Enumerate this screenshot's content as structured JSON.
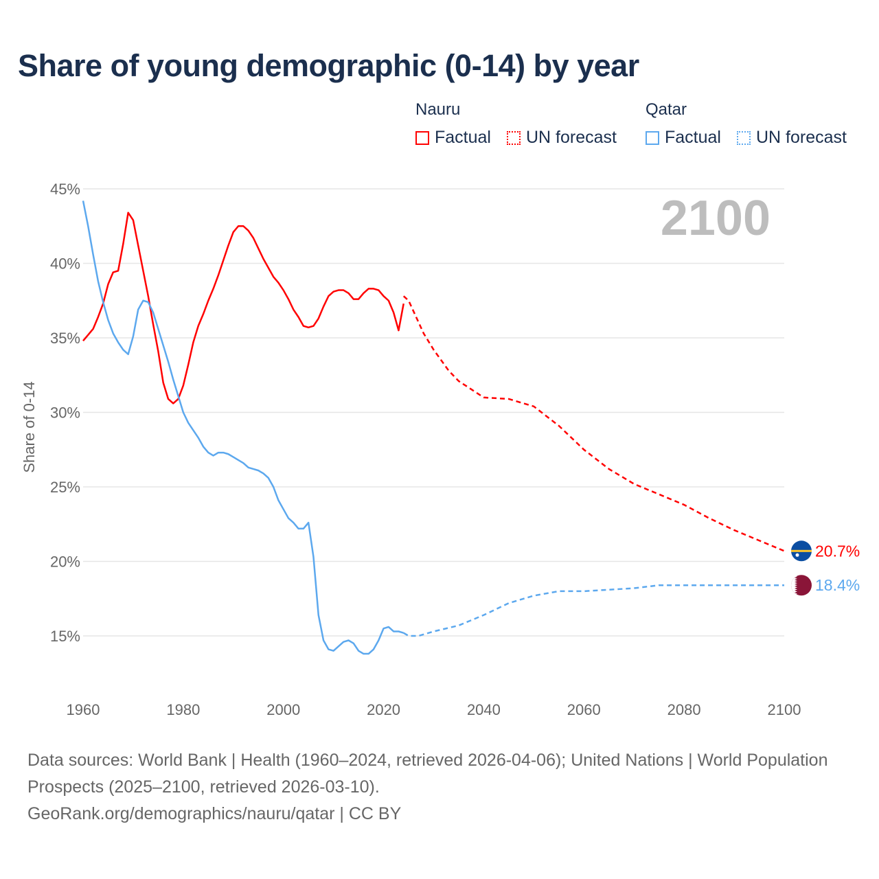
{
  "title": "Share of young demographic (0-14) by year",
  "legend": {
    "groups": [
      {
        "country": "Nauru",
        "factual": "Factual",
        "forecast": "UN forecast",
        "color": "#ff0000"
      },
      {
        "country": "Qatar",
        "factual": "Factual",
        "forecast": "UN forecast",
        "color": "#5ca8ee"
      }
    ]
  },
  "year_label": "2100",
  "footer": {
    "sources": "Data sources: World Bank | Health (1960–2024, retrieved 2026-04-06); United Nations | World Population Prospects (2025–2100, retrieved 2026-03-10).",
    "link": "GeoRank.org/demographics/nauru/qatar | CC BY"
  },
  "chart_data": {
    "type": "line",
    "title": "Share of young demographic (0-14) by year",
    "xlabel": "",
    "ylabel": "Share of 0-14",
    "xlim": [
      1960,
      2100
    ],
    "ylim": [
      12,
      45
    ],
    "grid": true,
    "x_ticks": [
      "1960",
      "1980",
      "2000",
      "2020",
      "2040",
      "2060",
      "2080",
      "2100"
    ],
    "x_tick_values": [
      1960,
      1980,
      2000,
      2020,
      2040,
      2060,
      2080,
      2100
    ],
    "y_ticks": [
      "15%",
      "20%",
      "25%",
      "30%",
      "35%",
      "40%",
      "45%"
    ],
    "y_tick_values": [
      15,
      20,
      25,
      30,
      35,
      40,
      45
    ],
    "series": [
      {
        "name": "Nauru",
        "color": "#ff0000",
        "end_label": "20.7%",
        "factual": {
          "start": 1960,
          "values": [
            34.8,
            35.2,
            35.6,
            36.4,
            37.3,
            38.6,
            39.4,
            39.5,
            41.3,
            43.4,
            42.9,
            41.2,
            39.5,
            37.8,
            35.9,
            34.1,
            32.0,
            30.9,
            30.6,
            30.9,
            31.8,
            33.2,
            34.7,
            35.8,
            36.6,
            37.5,
            38.3,
            39.2,
            40.2,
            41.2,
            42.1,
            42.5,
            42.5,
            42.2,
            41.7,
            41.0,
            40.3,
            39.7,
            39.1,
            38.7,
            38.2,
            37.6,
            36.9,
            36.4,
            35.8,
            35.7,
            35.8,
            36.3,
            37.1,
            37.8,
            38.1,
            38.2,
            38.2,
            38.0,
            37.6,
            37.6,
            38.0,
            38.3,
            38.3,
            38.2,
            37.8,
            37.5,
            36.7,
            35.5,
            37.3
          ]
        },
        "forecast": {
          "x": [
            2024,
            2025,
            2028,
            2030,
            2033,
            2035,
            2040,
            2045,
            2050,
            2055,
            2060,
            2065,
            2070,
            2075,
            2080,
            2085,
            2090,
            2095,
            2100
          ],
          "values": [
            37.8,
            37.5,
            35.3,
            34.2,
            32.8,
            32.1,
            31.0,
            30.9,
            30.4,
            29.1,
            27.5,
            26.2,
            25.2,
            24.5,
            23.8,
            22.9,
            22.1,
            21.4,
            20.7
          ]
        }
      },
      {
        "name": "Qatar",
        "color": "#5ca8ee",
        "end_label": "18.4%",
        "factual": {
          "start": 1960,
          "values": [
            44.2,
            42.5,
            40.6,
            38.8,
            37.4,
            36.2,
            35.3,
            34.7,
            34.2,
            33.9,
            35.1,
            36.9,
            37.5,
            37.4,
            36.7,
            35.6,
            34.5,
            33.4,
            32.2,
            31.1,
            30.0,
            29.3,
            28.8,
            28.3,
            27.7,
            27.3,
            27.1,
            27.3,
            27.3,
            27.2,
            27.0,
            26.8,
            26.6,
            26.3,
            26.2,
            26.1,
            25.9,
            25.6,
            25.0,
            24.1,
            23.5,
            22.9,
            22.6,
            22.2,
            22.2,
            22.6,
            20.3,
            16.4,
            14.7,
            14.1,
            14.0,
            14.3,
            14.6,
            14.7,
            14.5,
            14.0,
            13.8,
            13.8,
            14.1,
            14.7,
            15.5,
            15.6,
            15.3,
            15.3,
            15.2
          ]
        },
        "forecast": {
          "x": [
            2024,
            2025,
            2027,
            2030,
            2035,
            2040,
            2045,
            2050,
            2055,
            2060,
            2065,
            2070,
            2075,
            2080,
            2085,
            2090,
            2095,
            2100
          ],
          "values": [
            15.2,
            15.0,
            15.0,
            15.3,
            15.7,
            16.4,
            17.2,
            17.7,
            18.0,
            18.0,
            18.1,
            18.2,
            18.4,
            18.4,
            18.4,
            18.4,
            18.4,
            18.4
          ]
        }
      }
    ]
  }
}
